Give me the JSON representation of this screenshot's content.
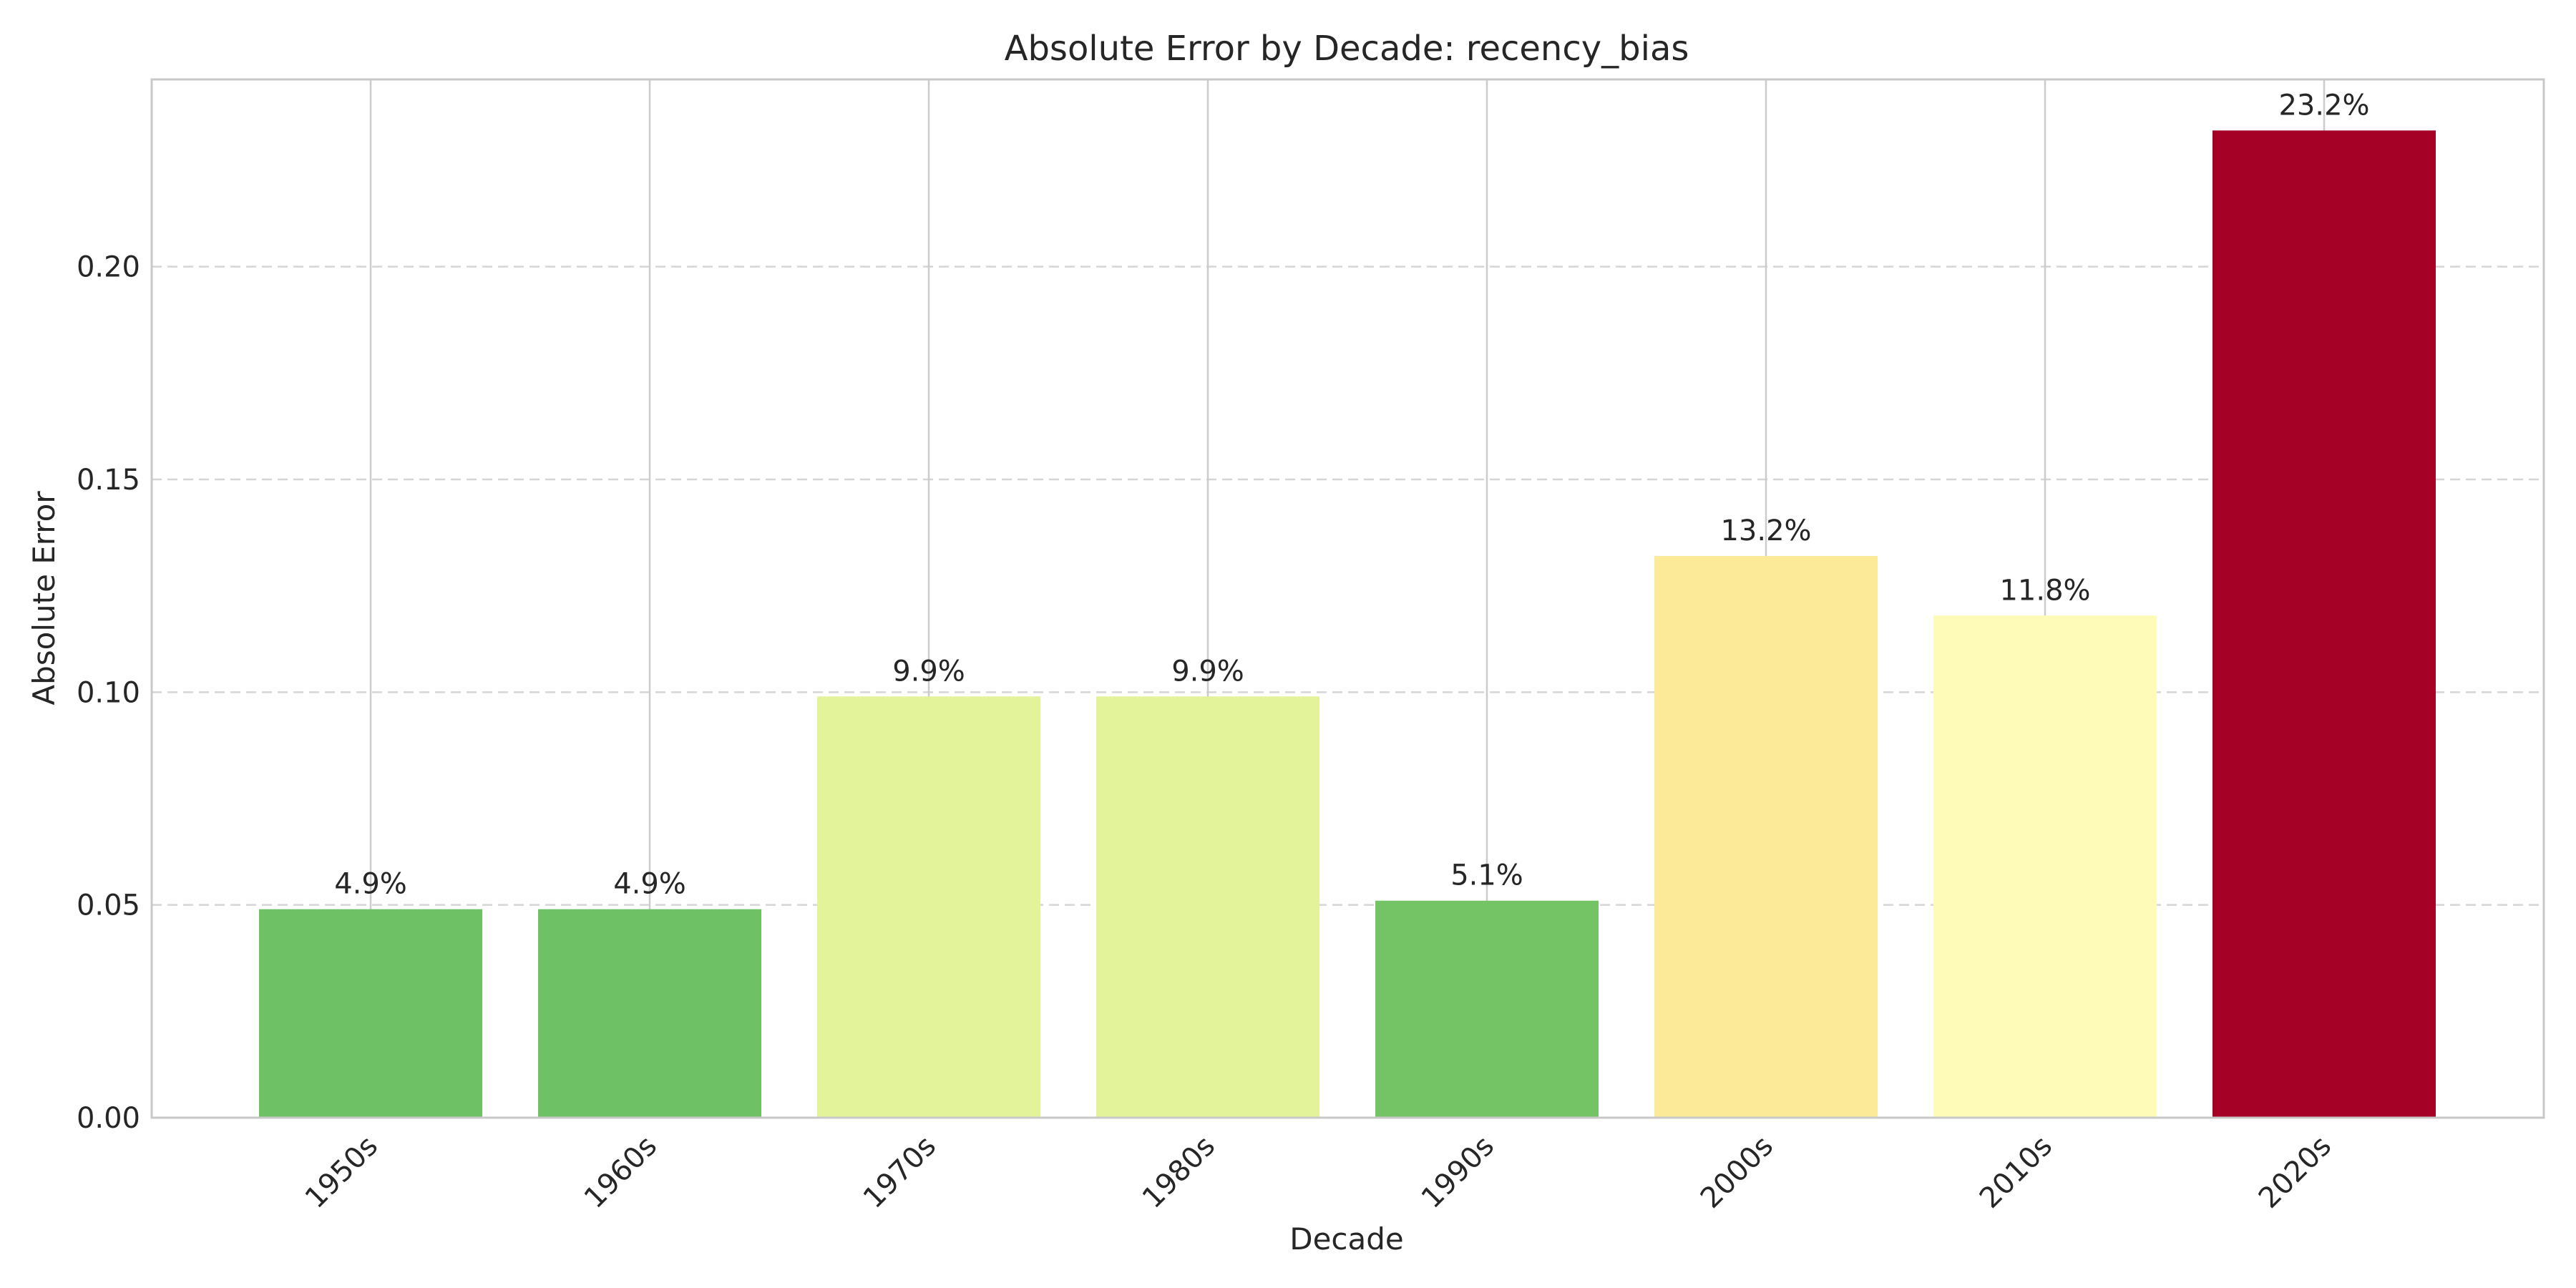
{
  "chart_data": {
    "type": "bar",
    "title": "Absolute Error by Decade: recency_bias",
    "xlabel": "Decade",
    "ylabel": "Absolute Error",
    "categories": [
      "1950s",
      "1960s",
      "1970s",
      "1980s",
      "1990s",
      "2000s",
      "2010s",
      "2020s"
    ],
    "values": [
      0.049,
      0.049,
      0.099,
      0.099,
      0.051,
      0.132,
      0.118,
      0.232
    ],
    "data_labels": [
      "4.9%",
      "4.9%",
      "9.9%",
      "9.9%",
      "5.1%",
      "13.2%",
      "11.8%",
      "23.2%"
    ],
    "bar_colors": [
      "#6fc165",
      "#6fc165",
      "#e3f399",
      "#e3f399",
      "#74c466",
      "#fcea99",
      "#fefbb8",
      "#a50026"
    ],
    "ylim": [
      0,
      0.244
    ],
    "yticks": [
      0.0,
      0.05,
      0.1,
      0.15,
      0.2
    ],
    "ytick_labels": [
      "0.00",
      "0.05",
      "0.10",
      "0.15",
      "0.20"
    ],
    "grid": true,
    "x_tick_rotation_deg": 45
  }
}
